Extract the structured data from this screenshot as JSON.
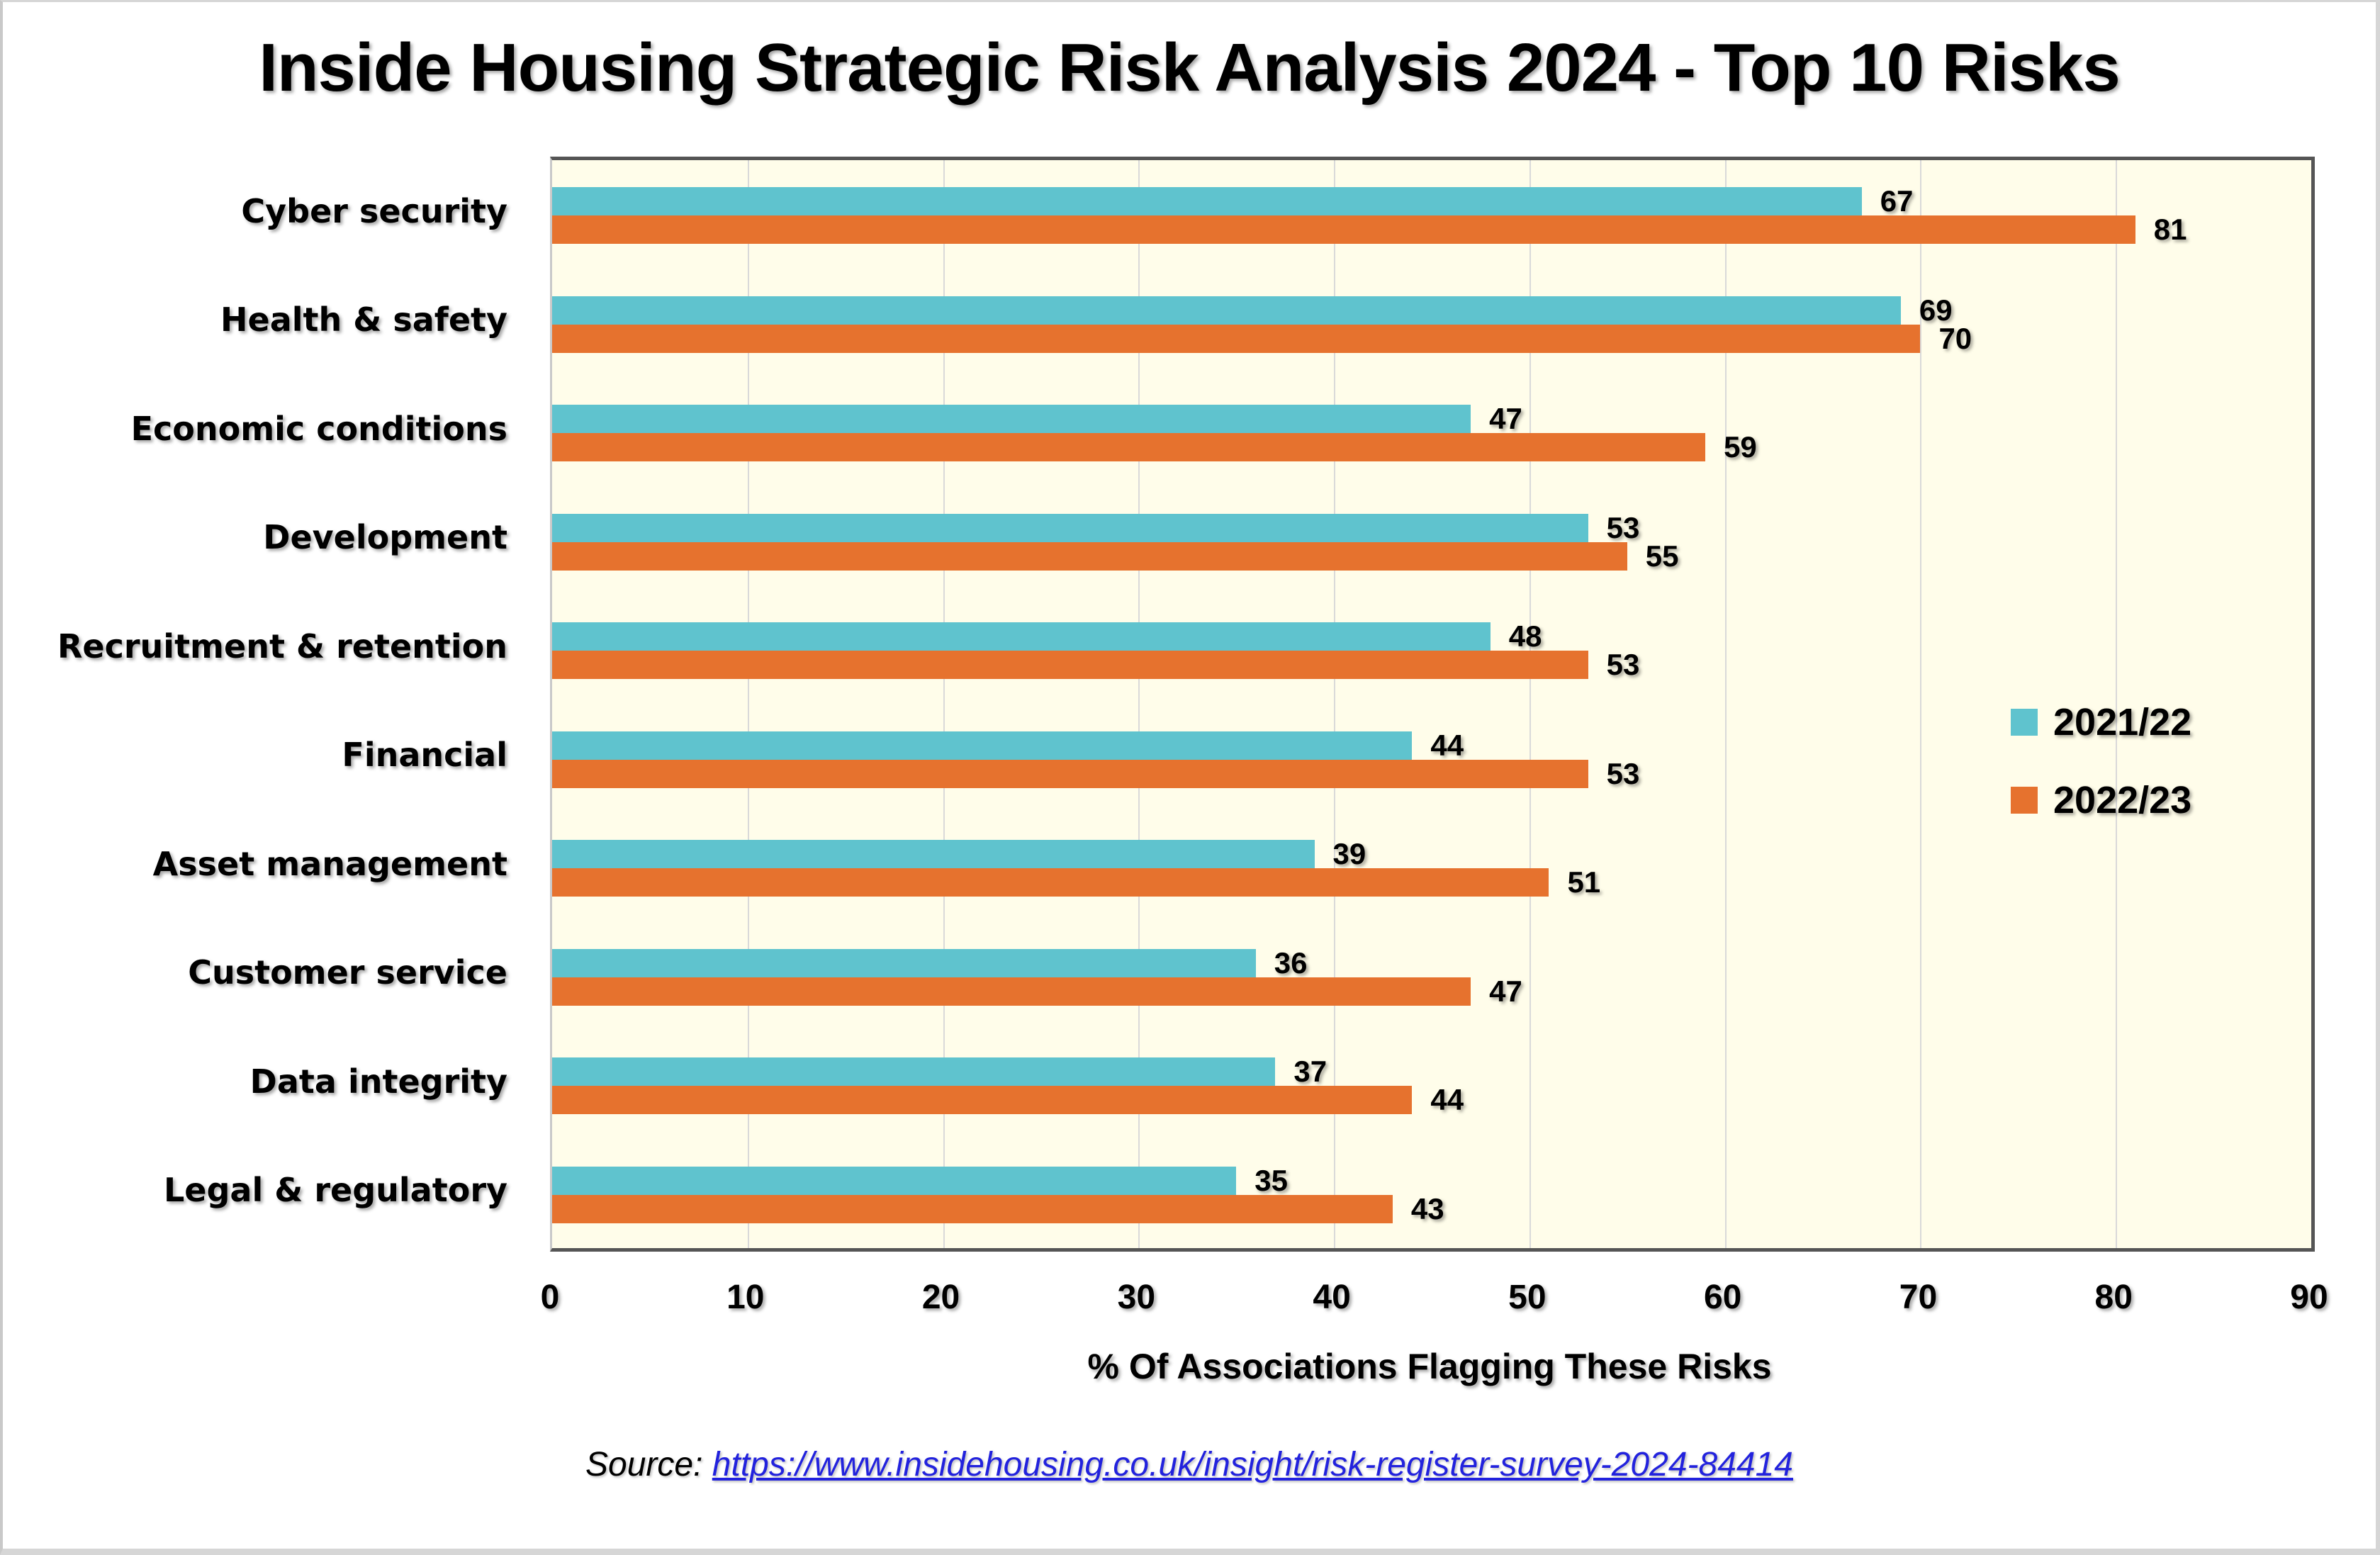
{
  "page": {
    "title": "Inside Housing Strategic Risk Analysis 2024 - Top 10 Risks",
    "source_prefix": "Source: ",
    "source_url": "https://www.insidehousing.co.uk/insight/risk-register-survey-2024-84414"
  },
  "chart_data": {
    "type": "bar",
    "orientation": "horizontal",
    "title": "Inside Housing Strategic Risk Analysis 2024 - Top 10 Risks",
    "categories": [
      "Cyber security",
      "Health & safety",
      "Economic conditions",
      "Development",
      "Recruitment & retention",
      "Financial",
      "Asset management",
      "Customer service",
      "Data integrity",
      "Legal & regulatory"
    ],
    "series": [
      {
        "name": "2021/22",
        "color": "#5FC3CE",
        "values": [
          67,
          69,
          47,
          53,
          48,
          44,
          39,
          36,
          37,
          35
        ]
      },
      {
        "name": "2022/23",
        "color": "#E6722E",
        "values": [
          81,
          70,
          59,
          55,
          53,
          53,
          51,
          47,
          44,
          43
        ]
      }
    ],
    "data_labels": true,
    "xlabel": "% Of Associations Flagging These Risks",
    "xlim": [
      0,
      90
    ],
    "xticks": [
      0,
      10,
      20,
      30,
      40,
      50,
      60,
      70,
      80,
      90
    ],
    "grid": "vertical",
    "gridline_color": "#D9D9D9",
    "plot_background": "#FFFDEA",
    "plot_border_color": "#555555",
    "legend_position": "inside-right"
  }
}
